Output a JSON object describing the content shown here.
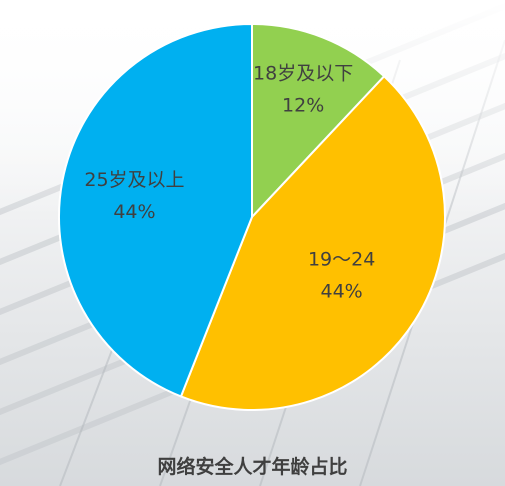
{
  "chart_data": {
    "type": "pie",
    "title": "网络安全人才年龄占比",
    "slices": [
      {
        "label": "18岁及以下",
        "value": 12,
        "value_label": "12%",
        "color": "#92d050"
      },
      {
        "label": "19～24",
        "value": 44,
        "value_label": "44%",
        "color": "#ffc000"
      },
      {
        "label": "25岁及以上",
        "value": 44,
        "value_label": "44%",
        "color": "#00b0f0"
      }
    ],
    "start_angle_deg": 0,
    "direction": "clockwise",
    "slice_border_color": "#ffffff",
    "legend": "none",
    "label_position": "inside"
  }
}
